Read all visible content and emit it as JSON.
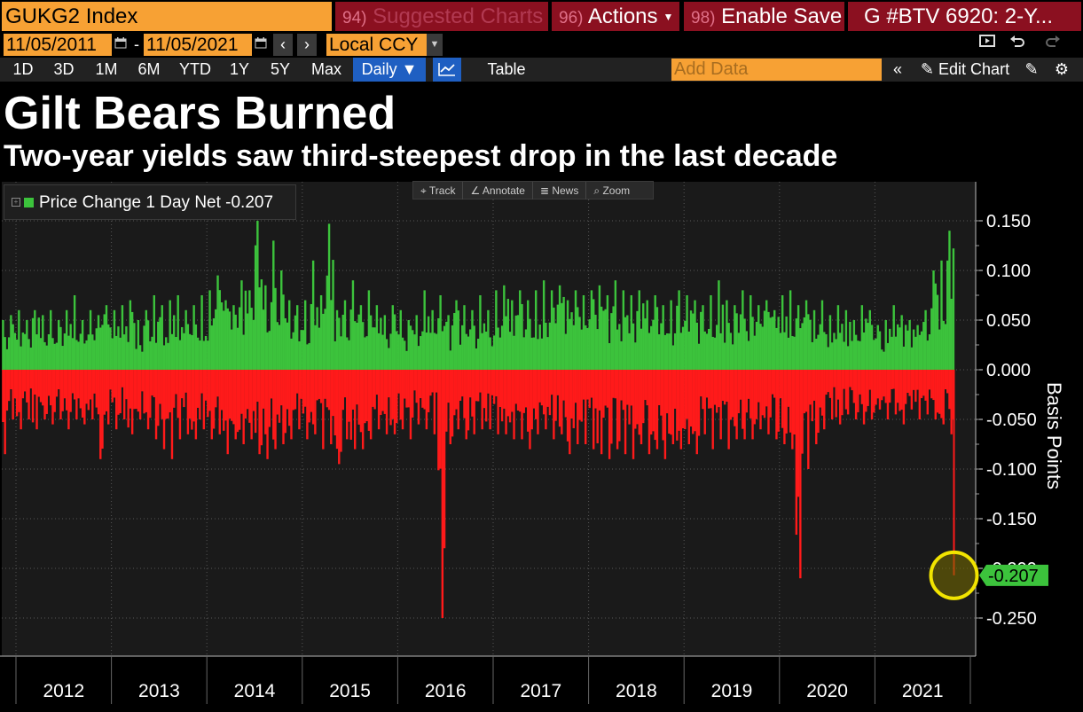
{
  "header": {
    "ticker": "GUKG2 Index",
    "suggested_num": "94)",
    "suggested_label": "Suggested Charts",
    "actions_num": "96)",
    "actions_label": "Actions",
    "enable_num": "98)",
    "enable_label": "Enable Save",
    "story_label": "G #BTV 6920: 2-Y..."
  },
  "dates": {
    "start": "11/05/2011",
    "separator": "-",
    "end": "11/05/2021",
    "currency": "Local CCY"
  },
  "toolbar": {
    "periods": [
      "1D",
      "3D",
      "1M",
      "6M",
      "YTD",
      "1Y",
      "5Y",
      "Max"
    ],
    "frequency": "Daily ▼",
    "table_label": "Table",
    "add_data_placeholder": "Add Data",
    "edit_chart_label": "Edit Chart"
  },
  "icons": {
    "calendar": "calendar-icon",
    "prev": "chevron-left-icon",
    "next": "chevron-right-icon",
    "presentation": "presentation-icon",
    "undo": "undo-icon",
    "redo": "redo-icon",
    "line_chart": "line-chart-icon",
    "collapse": "double-chevron-left-icon",
    "pencil": "pencil-icon",
    "annotate": "annotate-icon",
    "gear": "gear-icon"
  },
  "colors": {
    "orange_field": "#f7a134",
    "red_button": "#8b1020",
    "positive": "#3cc33c",
    "negative": "#ff1a1a",
    "highlight_circle": "#f2e400",
    "active_blue": "#1f5fc2"
  },
  "chart_tools": [
    "Track",
    "Annotate",
    "News",
    "Zoom"
  ],
  "chart_data": {
    "type": "bar",
    "title": "Gilt Bears Burned",
    "subtitle": "Two-year yields saw third-steepest drop in the last decade",
    "ylabel": "Basis Points",
    "xlabel": "",
    "ylim": [
      -0.27,
      0.18
    ],
    "yticks": [
      "0.150",
      "0.100",
      "0.050",
      "0.000",
      "-0.050",
      "-0.100",
      "-0.150",
      "-0.200",
      "-0.250"
    ],
    "ytick_values": [
      0.15,
      0.1,
      0.05,
      0.0,
      -0.05,
      -0.1,
      -0.15,
      -0.2,
      -0.25
    ],
    "x_categories": [
      "2012",
      "2013",
      "2014",
      "2015",
      "2016",
      "2017",
      "2018",
      "2019",
      "2020",
      "2021"
    ],
    "legend": "Price Change 1 Day Net -0.207",
    "last_value_label": "-0.207",
    "last_value": -0.207,
    "grid": true,
    "legend_position": "top-left",
    "notable_points": [
      {
        "x": "2014",
        "y": 0.15
      },
      {
        "x": "2015",
        "y": 0.147
      },
      {
        "x": "2016",
        "y": -0.25
      },
      {
        "x": "2020",
        "y": -0.21
      },
      {
        "x": "2021",
        "y": 0.14
      },
      {
        "x": "2021",
        "y": -0.207
      }
    ],
    "series": [
      {
        "name": "Price Change 1 Day Net",
        "x": [
          "2011-11",
          "2011-12",
          "2012-01",
          "2012-02",
          "2012-03",
          "2012-04",
          "2012-05",
          "2012-06",
          "2012-07",
          "2012-08",
          "2012-09",
          "2012-10",
          "2012-11",
          "2012-12",
          "2013-01",
          "2013-02",
          "2013-03",
          "2013-04",
          "2013-05",
          "2013-06",
          "2013-07",
          "2013-08",
          "2013-09",
          "2013-10",
          "2013-11",
          "2013-12",
          "2014-01",
          "2014-02",
          "2014-03",
          "2014-04",
          "2014-05",
          "2014-06",
          "2014-07",
          "2014-08",
          "2014-09",
          "2014-10",
          "2014-11",
          "2014-12",
          "2015-01",
          "2015-02",
          "2015-03",
          "2015-04",
          "2015-05",
          "2015-06",
          "2015-07",
          "2015-08",
          "2015-09",
          "2015-10",
          "2015-11",
          "2015-12",
          "2016-01",
          "2016-02",
          "2016-03",
          "2016-04",
          "2016-05",
          "2016-06",
          "2016-07",
          "2016-08",
          "2016-09",
          "2016-10",
          "2016-11",
          "2016-12",
          "2017-01",
          "2017-02",
          "2017-03",
          "2017-04",
          "2017-05",
          "2017-06",
          "2017-07",
          "2017-08",
          "2017-09",
          "2017-10",
          "2017-11",
          "2017-12",
          "2018-01",
          "2018-02",
          "2018-03",
          "2018-04",
          "2018-05",
          "2018-06",
          "2018-07",
          "2018-08",
          "2018-09",
          "2018-10",
          "2018-11",
          "2018-12",
          "2019-01",
          "2019-02",
          "2019-03",
          "2019-04",
          "2019-05",
          "2019-06",
          "2019-07",
          "2019-08",
          "2019-09",
          "2019-10",
          "2019-11",
          "2019-12",
          "2020-01",
          "2020-02",
          "2020-03",
          "2020-04",
          "2020-05",
          "2020-06",
          "2020-07",
          "2020-08",
          "2020-09",
          "2020-10",
          "2020-11",
          "2020-12",
          "2021-01",
          "2021-02",
          "2021-03",
          "2021-04",
          "2021-05",
          "2021-06",
          "2021-07",
          "2021-08",
          "2021-09",
          "2021-10",
          "2021-11"
        ],
        "max": [
          0.05,
          0.055,
          0.06,
          0.05,
          0.06,
          0.055,
          0.06,
          0.05,
          0.06,
          0.075,
          0.05,
          0.06,
          0.055,
          0.065,
          0.06,
          0.065,
          0.07,
          0.05,
          0.06,
          0.075,
          0.065,
          0.07,
          0.075,
          0.06,
          0.065,
          0.075,
          0.08,
          0.095,
          0.07,
          0.065,
          0.09,
          0.08,
          0.15,
          0.085,
          0.13,
          0.1,
          0.07,
          0.065,
          0.07,
          0.11,
          0.075,
          0.147,
          0.06,
          0.07,
          0.09,
          0.065,
          0.08,
          0.065,
          0.055,
          0.065,
          0.06,
          0.05,
          0.055,
          0.08,
          0.06,
          0.075,
          0.055,
          0.07,
          0.065,
          0.06,
          0.075,
          0.06,
          0.08,
          0.085,
          0.07,
          0.08,
          0.07,
          0.08,
          0.09,
          0.08,
          0.085,
          0.07,
          0.08,
          0.075,
          0.08,
          0.085,
          0.075,
          0.09,
          0.08,
          0.075,
          0.08,
          0.07,
          0.075,
          0.065,
          0.07,
          0.08,
          0.075,
          0.07,
          0.065,
          0.075,
          0.09,
          0.07,
          0.065,
          0.08,
          0.075,
          0.065,
          0.07,
          0.06,
          0.075,
          0.08,
          0.065,
          0.07,
          0.06,
          0.07,
          0.055,
          0.065,
          0.06,
          0.05,
          0.065,
          0.06,
          0.045,
          0.05,
          0.065,
          0.055,
          0.05,
          0.045,
          0.06,
          0.1,
          0.11,
          0.14,
          0.09
        ],
        "min": [
          -0.085,
          -0.05,
          -0.06,
          -0.05,
          -0.06,
          -0.05,
          -0.055,
          -0.05,
          -0.06,
          -0.05,
          -0.055,
          -0.05,
          -0.09,
          -0.055,
          -0.06,
          -0.05,
          -0.065,
          -0.05,
          -0.06,
          -0.07,
          -0.08,
          -0.09,
          -0.07,
          -0.065,
          -0.07,
          -0.06,
          -0.07,
          -0.065,
          -0.085,
          -0.07,
          -0.075,
          -0.07,
          -0.085,
          -0.09,
          -0.08,
          -0.075,
          -0.07,
          -0.06,
          -0.07,
          -0.065,
          -0.08,
          -0.075,
          -0.095,
          -0.07,
          -0.08,
          -0.08,
          -0.07,
          -0.06,
          -0.065,
          -0.065,
          -0.06,
          -0.07,
          -0.055,
          -0.06,
          -0.065,
          -0.25,
          -0.075,
          -0.06,
          -0.07,
          -0.065,
          -0.06,
          -0.06,
          -0.065,
          -0.065,
          -0.07,
          -0.07,
          -0.08,
          -0.065,
          -0.06,
          -0.07,
          -0.065,
          -0.085,
          -0.075,
          -0.075,
          -0.08,
          -0.085,
          -0.09,
          -0.08,
          -0.085,
          -0.09,
          -0.075,
          -0.085,
          -0.08,
          -0.09,
          -0.075,
          -0.08,
          -0.075,
          -0.085,
          -0.065,
          -0.08,
          -0.07,
          -0.08,
          -0.07,
          -0.07,
          -0.07,
          -0.06,
          -0.065,
          -0.07,
          -0.075,
          -0.08,
          -0.21,
          -0.1,
          -0.075,
          -0.06,
          -0.05,
          -0.055,
          -0.045,
          -0.05,
          -0.055,
          -0.05,
          -0.04,
          -0.05,
          -0.045,
          -0.055,
          -0.04,
          -0.05,
          -0.045,
          -0.05,
          -0.055,
          -0.065,
          -0.207
        ]
      }
    ]
  }
}
